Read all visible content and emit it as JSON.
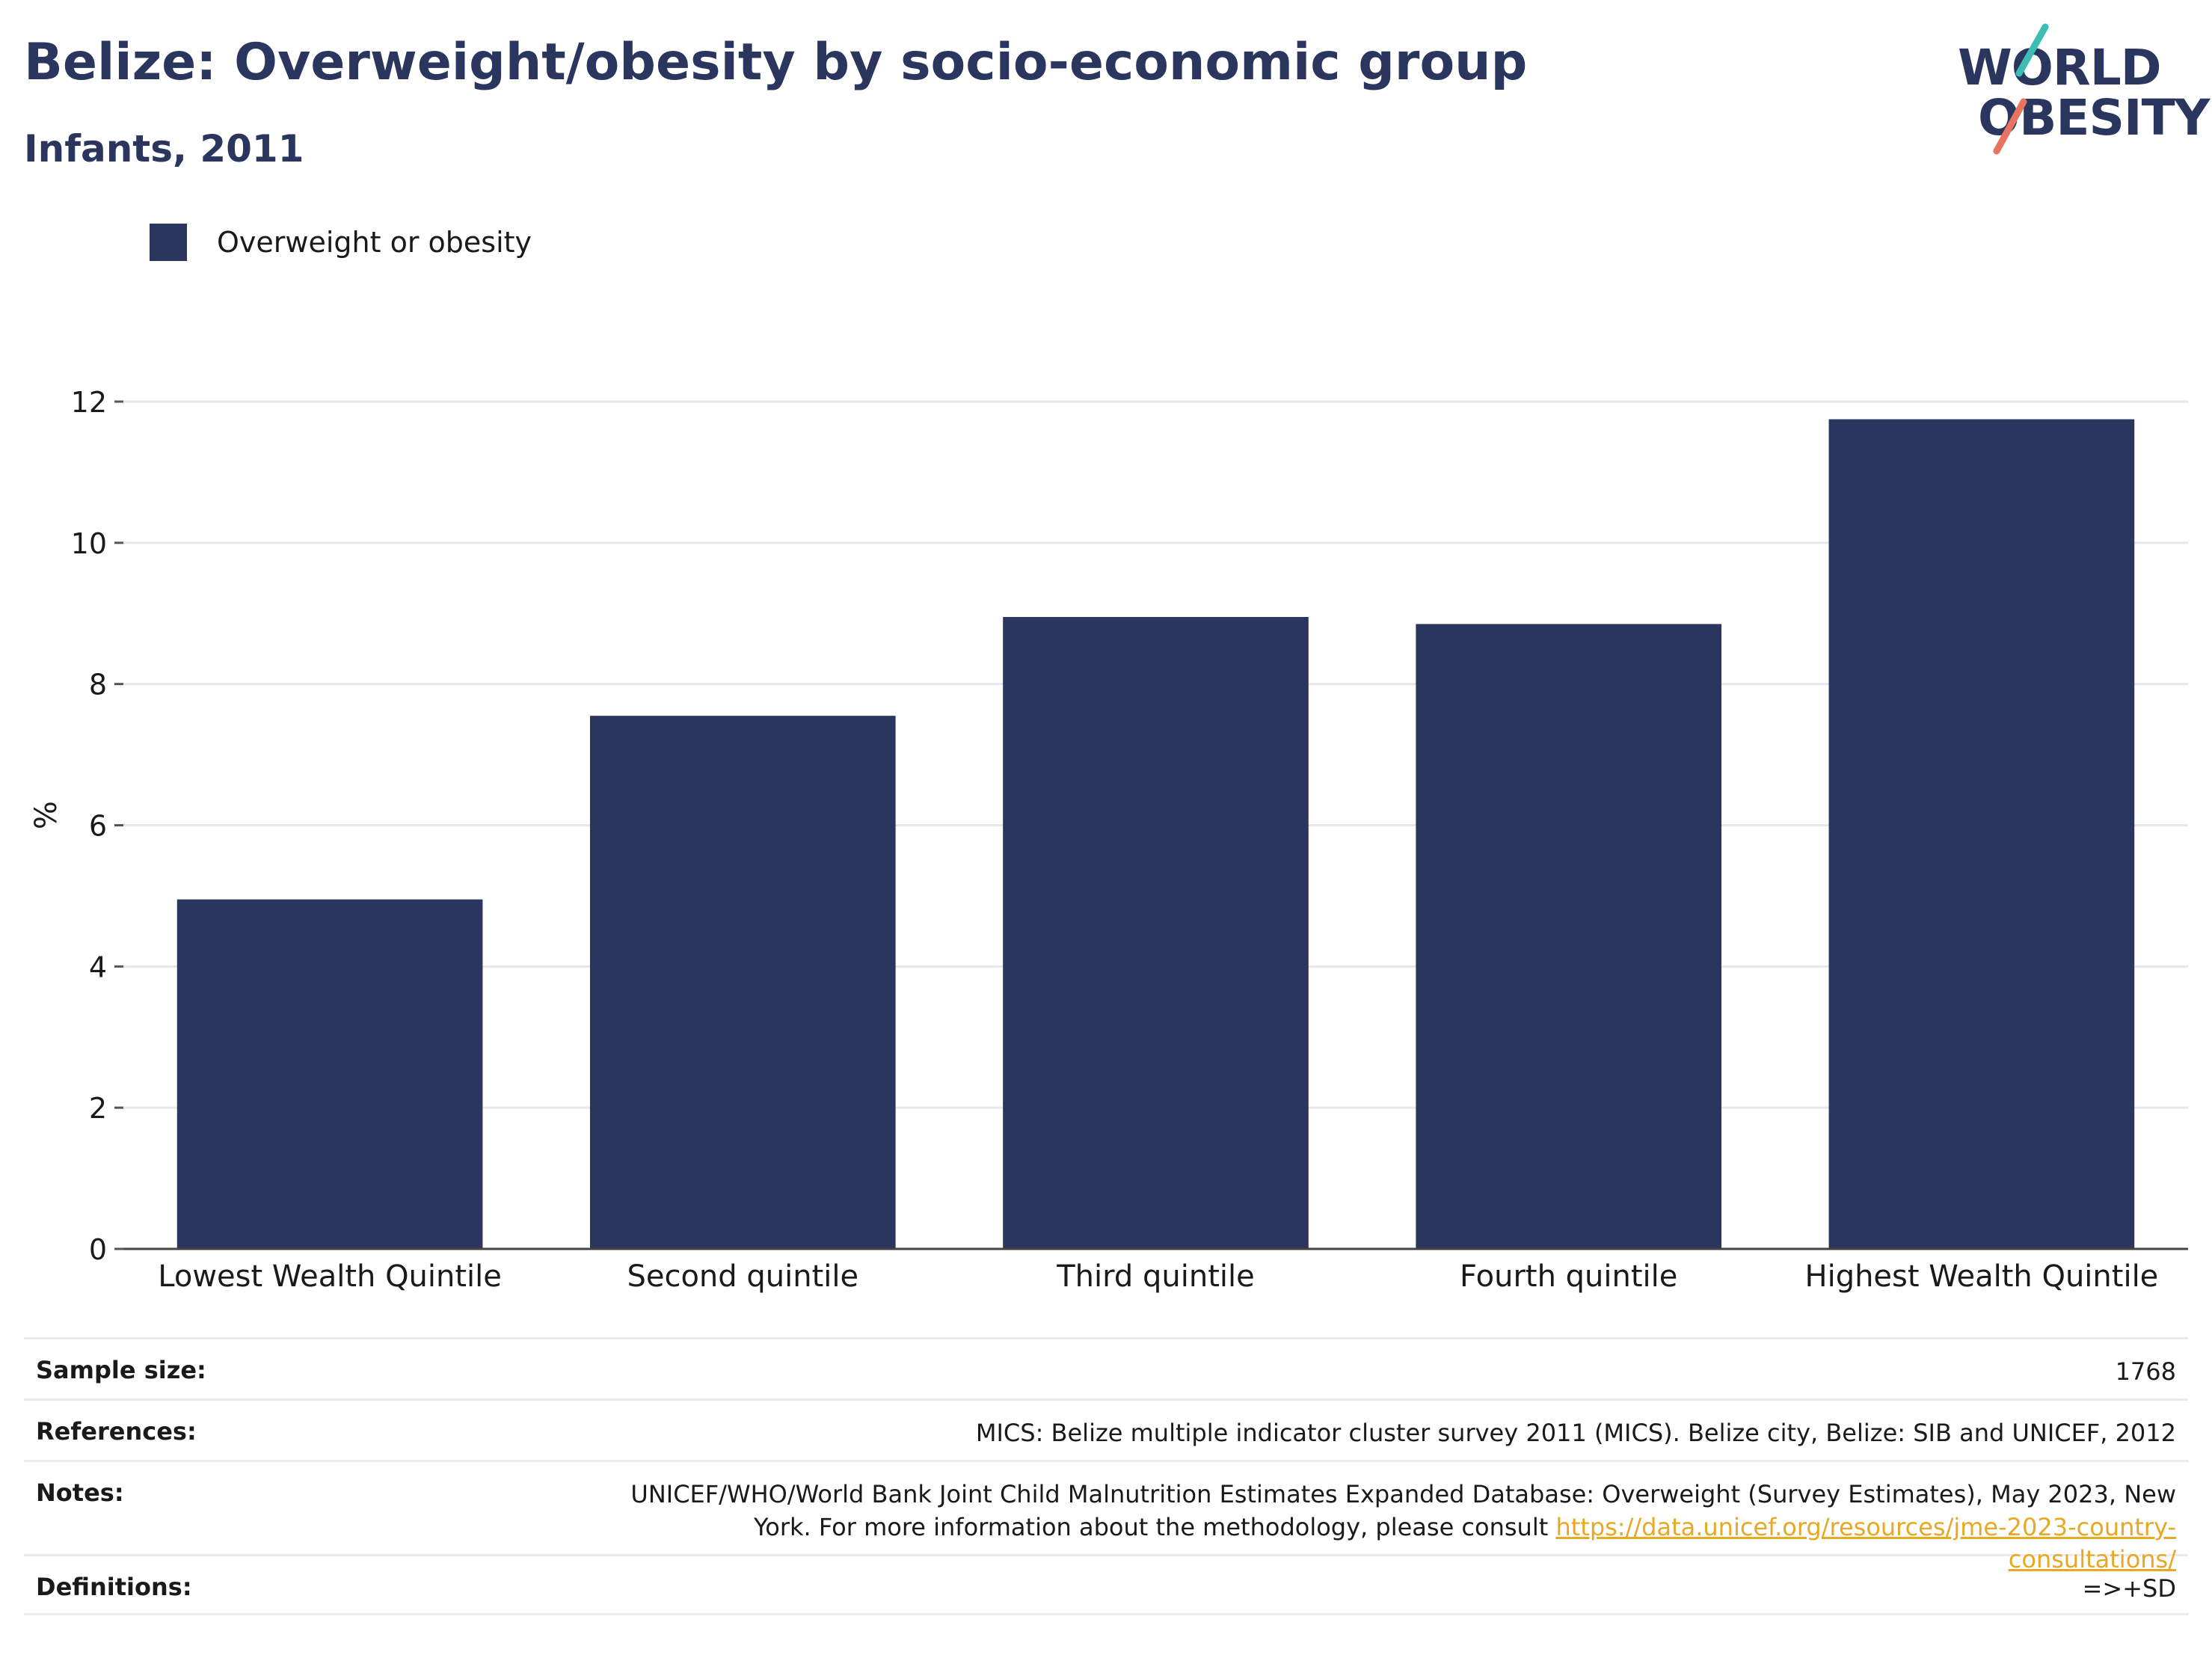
{
  "header": {
    "title": "Belize: Overweight/obesity by socio-economic group",
    "subtitle": "Infants, 2011"
  },
  "logo": {
    "line1": "WORLD",
    "line2": "OBESITY",
    "slash_colors": [
      "#3dbdb4",
      "#e8735f"
    ]
  },
  "legend": {
    "items": [
      {
        "label": "Overweight or obesity",
        "color": "#2b365f"
      }
    ]
  },
  "chart_data": {
    "type": "bar",
    "categories": [
      "Lowest Wealth Quintile",
      "Second quintile",
      "Third quintile",
      "Fourth quintile",
      "Highest Wealth Quintile"
    ],
    "series": [
      {
        "name": "Overweight or obesity",
        "values": [
          4.95,
          7.55,
          8.95,
          8.85,
          11.75
        ],
        "color": "#2b365f"
      }
    ],
    "ylabel": "%",
    "ylim": [
      0,
      12
    ],
    "yticks": [
      0,
      2,
      4,
      6,
      8,
      10,
      12
    ],
    "grid": true,
    "legend_position": "top-left"
  },
  "info": {
    "sample_size_label": "Sample size:",
    "sample_size_value": "1768",
    "references_label": "References:",
    "references_value": "MICS: Belize multiple indicator cluster survey 2011 (MICS). Belize city, Belize: SIB and UNICEF, 2012",
    "notes_label": "Notes:",
    "notes_text_1": "UNICEF/WHO/World Bank Joint Child Malnutrition Estimates Expanded Database: Overweight (Survey Estimates), May 2023, New York. For more information about the methodology, please consult ",
    "notes_link": "https://data.unicef.org/resources/jme-2023-country-consultations/",
    "definitions_label": "Definitions:",
    "definitions_value": "=>+SD"
  }
}
